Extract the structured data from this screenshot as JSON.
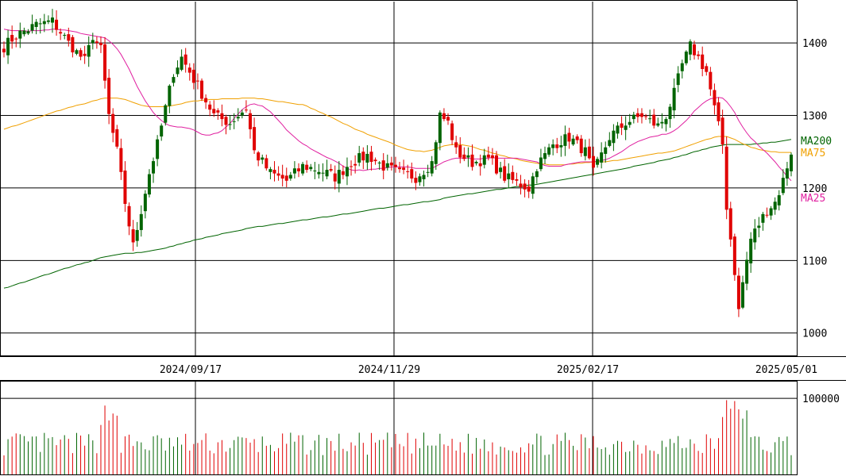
{
  "chart_data": [
    {
      "type": "candlestick",
      "x_tick_labels": [
        "2024/09/17",
        "2024/11/29",
        "2025/02/17",
        "2025/05/01"
      ],
      "y_tick_labels": [
        "1400",
        "1300",
        "1200",
        "1100",
        "1000"
      ],
      "y_ticks": [
        1400,
        1300,
        1200,
        1100,
        1000
      ],
      "ylim": [
        968,
        1457
      ],
      "grid": true,
      "legend": [
        {
          "name": "MA200",
          "color": "#006400"
        },
        {
          "name": "MA75",
          "color": "#f0a000"
        },
        {
          "name": "MA25",
          "color": "#e020a0"
        }
      ],
      "colors": {
        "up": "#006400",
        "down": "#e00000",
        "ma200": "#006400",
        "ma75": "#f0a000",
        "ma25": "#e020a0"
      },
      "ohlc": [],
      "ma200": [],
      "ma75": [],
      "ma25": []
    },
    {
      "type": "bar",
      "y_tick_labels": [
        "100000"
      ],
      "y_ticks": [
        100000
      ],
      "ylim": [
        0,
        122000
      ],
      "values": [],
      "colors": {
        "up": "#006400",
        "down": "#e00000"
      }
    }
  ]
}
